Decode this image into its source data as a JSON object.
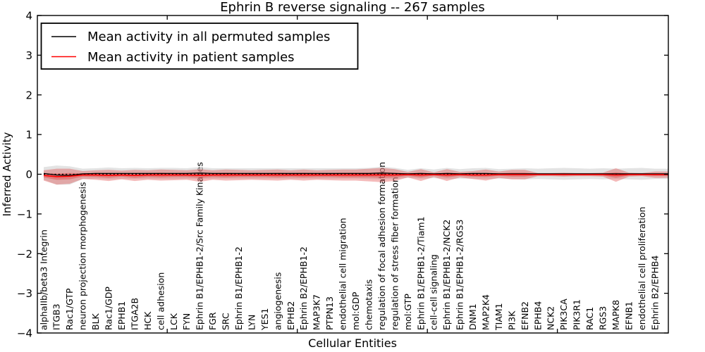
{
  "window": {
    "background": "#ffffff"
  },
  "chart_data": {
    "type": "line",
    "title": "Ephrin B reverse signaling -- 267 samples",
    "xlabel": "Cellular Entities",
    "ylabel": "Inferred Activity",
    "ylim": [
      -4,
      4
    ],
    "grid": false,
    "ytick_values": [
      -4,
      -3,
      -2,
      -1,
      0,
      1,
      2,
      3,
      4
    ],
    "ytick_labels": [
      "−4",
      "−3",
      "−2",
      "−1",
      "0",
      "1",
      "2",
      "3",
      "4"
    ],
    "x_tick_index": [
      9.5,
      19.5,
      29.5,
      39.5
    ],
    "legend": {
      "position": "upper left",
      "entries": [
        {
          "label": "Mean activity in all permuted samples",
          "color": "#000000"
        },
        {
          "label": "Mean activity in patient samples",
          "color": "#ff0000"
        }
      ]
    },
    "categories": [
      "alphaIIb/beta3 Integrin",
      "ITGB3",
      "Rac1/GTP",
      "neuron projection morphogenesis",
      "BLK",
      "Rac1/GDP",
      "EPHB1",
      "ITGA2B",
      "HCK",
      "cell adhesion",
      "LCK",
      "FYN",
      "Ephrin B1/EPHB1-2/Src Family Kinases",
      "FGR",
      "SRC",
      "Ephrin B1/EPHB1-2",
      "LYN",
      "YES1",
      "angiogenesis",
      "EPHB2",
      "Ephrin B2/EPHB1-2",
      "MAP3K7",
      "PTPN13",
      "endothelial cell migration",
      "mol:GDP",
      "chemotaxis",
      "regulation of focal adhesion formation",
      "regulation of stress fiber formation",
      "mol:GTP",
      "Ephrin B1/EPHB1-2/Tiam1",
      "cell-cell signaling",
      "Ephrin B1/EPHB1-2/NCK2",
      "Ephrin B1/EPHB1-2/RGS3",
      "DNM1",
      "MAP2K4",
      "TIAM1",
      "PI3K",
      "EFNB2",
      "EPHB4",
      "NCK2",
      "PIK3CA",
      "PIK3R1",
      "RAC1",
      "RGS3",
      "MAPK8",
      "EFNB1",
      "endothelial cell proliferation",
      "Ephrin B2/EPHB4"
    ],
    "series": [
      {
        "name": "Mean activity in all permuted samples",
        "color": "#000000",
        "values": [
          0.02,
          -0.02,
          -0.03,
          0.01,
          0.02,
          0.02,
          0.02,
          0.02,
          0.02,
          0.02,
          0.02,
          0.02,
          0.03,
          0.02,
          0.02,
          0.02,
          0.02,
          0.02,
          0.02,
          0.02,
          0.02,
          0.02,
          0.02,
          0.02,
          0.02,
          0.02,
          0.03,
          0.02,
          0.01,
          0.02,
          0.01,
          0.02,
          0.01,
          0.02,
          0.02,
          0.01,
          0.01,
          0.01,
          0.01,
          0.01,
          0.01,
          0.01,
          0.01,
          0.01,
          0.01,
          0.01,
          0.01,
          0.01
        ]
      },
      {
        "name": "Mean activity in patient samples",
        "color": "#ff0000",
        "values": [
          -0.03,
          -0.06,
          -0.05,
          -0.02,
          -0.02,
          -0.03,
          -0.02,
          -0.03,
          -0.02,
          -0.02,
          -0.02,
          -0.02,
          -0.03,
          -0.02,
          -0.02,
          -0.02,
          -0.02,
          -0.02,
          -0.02,
          -0.02,
          -0.02,
          -0.02,
          -0.02,
          -0.02,
          -0.02,
          -0.02,
          -0.02,
          -0.02,
          -0.01,
          -0.02,
          -0.01,
          -0.02,
          -0.01,
          -0.02,
          -0.02,
          -0.01,
          -0.01,
          -0.01,
          -0.01,
          -0.01,
          -0.01,
          -0.01,
          -0.01,
          -0.01,
          -0.02,
          -0.01,
          -0.01,
          -0.01
        ]
      },
      {
        "name": "Permuted samples band halfwidth",
        "color": "#c8c8c8",
        "values": [
          0.16,
          0.24,
          0.23,
          0.13,
          0.13,
          0.15,
          0.13,
          0.14,
          0.13,
          0.14,
          0.14,
          0.13,
          0.15,
          0.13,
          0.13,
          0.13,
          0.13,
          0.13,
          0.13,
          0.13,
          0.13,
          0.13,
          0.13,
          0.13,
          0.13,
          0.14,
          0.16,
          0.14,
          0.1,
          0.13,
          0.11,
          0.14,
          0.12,
          0.13,
          0.14,
          0.12,
          0.13,
          0.14,
          0.13,
          0.14,
          0.15,
          0.14,
          0.13,
          0.14,
          0.13,
          0.14,
          0.15,
          0.13
        ]
      },
      {
        "name": "Patient samples outer band halfwidth",
        "color": "#e03434",
        "values": [
          0.13,
          0.2,
          0.19,
          0.1,
          0.12,
          0.14,
          0.11,
          0.14,
          0.12,
          0.14,
          0.13,
          0.12,
          0.16,
          0.12,
          0.14,
          0.13,
          0.12,
          0.13,
          0.14,
          0.12,
          0.14,
          0.12,
          0.13,
          0.14,
          0.14,
          0.16,
          0.18,
          0.15,
          0.07,
          0.15,
          0.06,
          0.15,
          0.07,
          0.1,
          0.14,
          0.08,
          0.12,
          0.12,
          0.04,
          0.04,
          0.05,
          0.04,
          0.04,
          0.05,
          0.17,
          0.05,
          0.04,
          0.08
        ]
      },
      {
        "name": "Patient samples inner band halfwidth",
        "color": "#d44",
        "values": [
          0.05,
          0.08,
          0.08,
          0.04,
          0.05,
          0.06,
          0.04,
          0.06,
          0.05,
          0.06,
          0.05,
          0.05,
          0.06,
          0.05,
          0.06,
          0.05,
          0.05,
          0.05,
          0.06,
          0.05,
          0.06,
          0.05,
          0.05,
          0.06,
          0.06,
          0.06,
          0.07,
          0.06,
          0.03,
          0.06,
          0.02,
          0.06,
          0.03,
          0.04,
          0.05,
          0.03,
          0.05,
          0.05,
          0.015,
          0.015,
          0.02,
          0.015,
          0.015,
          0.02,
          0.07,
          0.02,
          0.015,
          0.03
        ]
      }
    ],
    "zero_line": {
      "style": "dotted",
      "color": "#000000",
      "y": 0
    },
    "colors": {
      "permuted_band_fill": "#c8c8c8",
      "permuted_band_opacity": 0.5,
      "patient_band_fill": "#e03434",
      "patient_band_outer_opacity": 0.34,
      "patient_band_inner_opacity": 0.38,
      "axes": "#000000"
    }
  }
}
